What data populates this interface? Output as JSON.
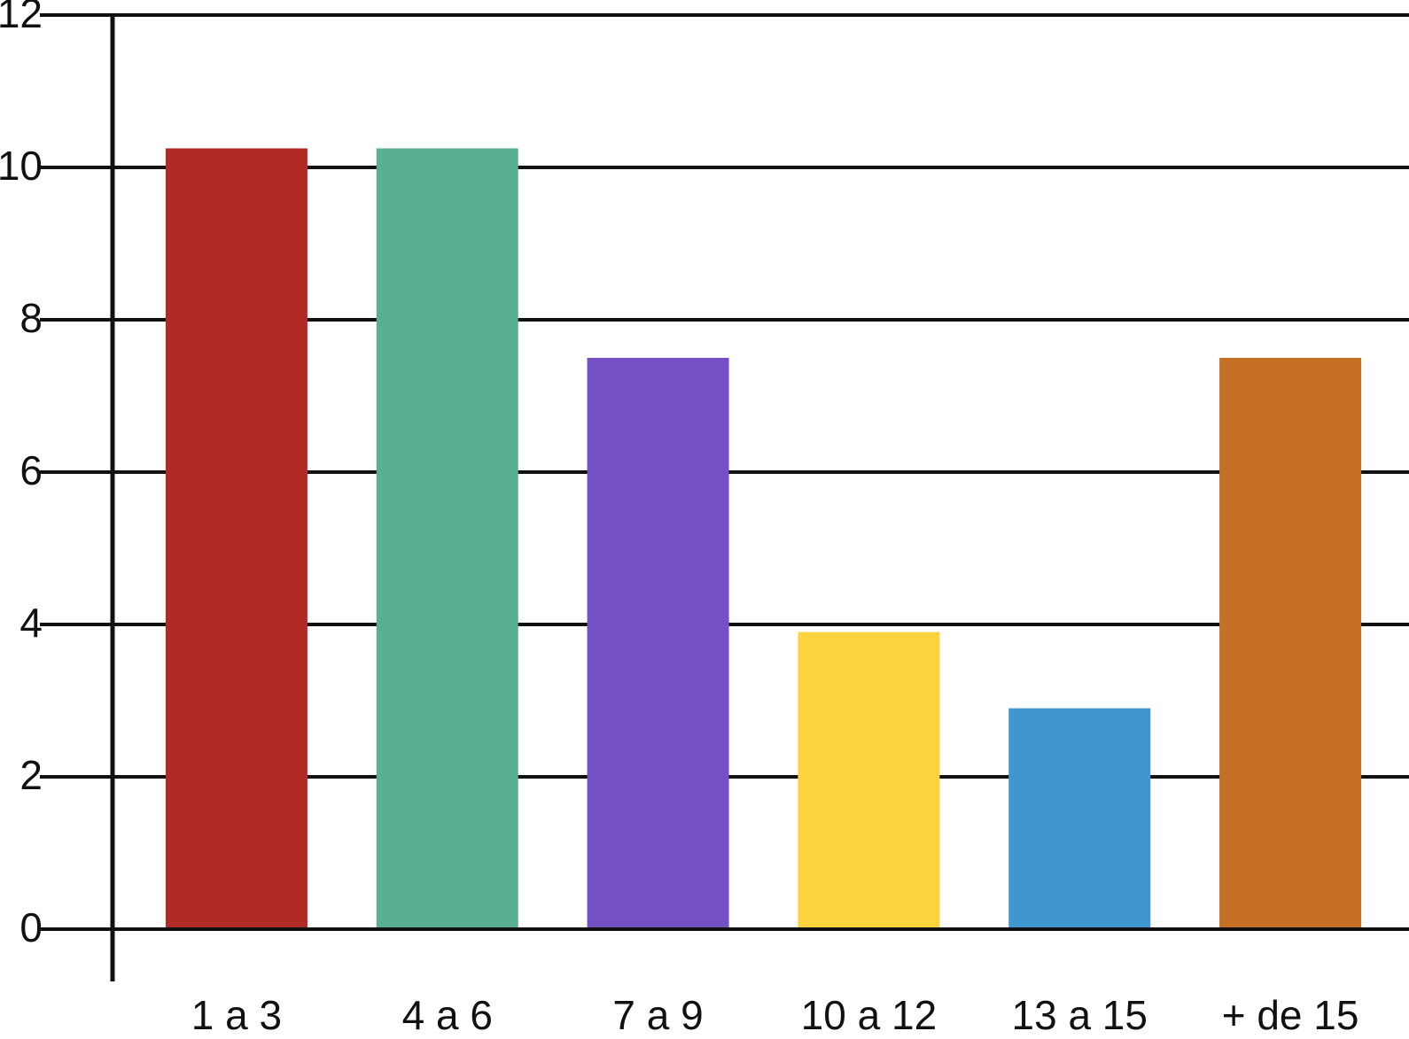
{
  "chart_data": {
    "type": "bar",
    "categories": [
      "1 a 3",
      "4 a 6",
      "7 a 9",
      "10 a 12",
      "13 a 15",
      "+ de 15"
    ],
    "values": [
      10.25,
      10.25,
      7.5,
      3.9,
      2.9,
      7.5
    ],
    "colors": [
      "#b22a26",
      "#58b090",
      "#7351c4",
      "#fbd33e",
      "#4096cf",
      "#c67025"
    ],
    "ylim": [
      0,
      12
    ],
    "yticks": [
      0,
      2,
      4,
      6,
      8,
      10,
      12
    ],
    "grid": true
  }
}
